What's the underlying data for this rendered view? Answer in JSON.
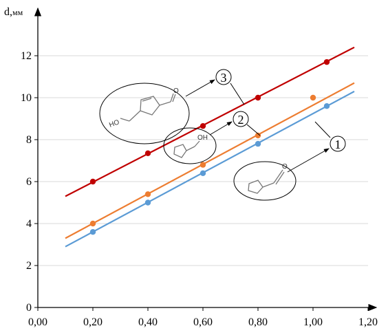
{
  "chart_data": {
    "type": "line",
    "title": "",
    "xlabel": "",
    "ylabel": "d,",
    "ylabel_unit": "мм",
    "xlim": [
      0.0,
      1.2
    ],
    "ylim": [
      0,
      14
    ],
    "x_ticks": [
      "0,00",
      "0,20",
      "0,40",
      "0,60",
      "0,80",
      "1,00",
      "1,20"
    ],
    "y_ticks": [
      "0",
      "2",
      "4",
      "6",
      "8",
      "10",
      "12"
    ],
    "grid": "horizontal",
    "series": [
      {
        "label": "1",
        "molecule": "furfural",
        "color": "#5b9bd5",
        "x": [
          0.2,
          0.4,
          0.6,
          0.8,
          1.05
        ],
        "y": [
          3.6,
          5.0,
          6.4,
          7.8,
          9.6
        ],
        "fit_range": [
          0.1,
          1.15
        ],
        "fit_y": [
          2.9,
          10.3
        ]
      },
      {
        "label": "2",
        "molecule": "furfuryl-alcohol",
        "color": "#ed7d31",
        "x": [
          0.2,
          0.4,
          0.6,
          0.8,
          1.0
        ],
        "y": [
          4.0,
          5.4,
          6.8,
          8.2,
          10.0
        ],
        "fit_range": [
          0.1,
          1.15
        ],
        "fit_y": [
          3.3,
          10.7
        ]
      },
      {
        "label": "3",
        "molecule": "5-hydroxymethylfurfural",
        "color": "#c00000",
        "x": [
          0.2,
          0.4,
          0.6,
          0.8,
          1.05
        ],
        "y": [
          6.0,
          7.35,
          8.65,
          10.0,
          11.7
        ],
        "fit_range": [
          0.1,
          1.15
        ],
        "fit_y": [
          5.3,
          12.4
        ]
      }
    ],
    "annotations": {
      "oh_label": "OH",
      "ho_label": "HO",
      "o_label": "O"
    }
  }
}
